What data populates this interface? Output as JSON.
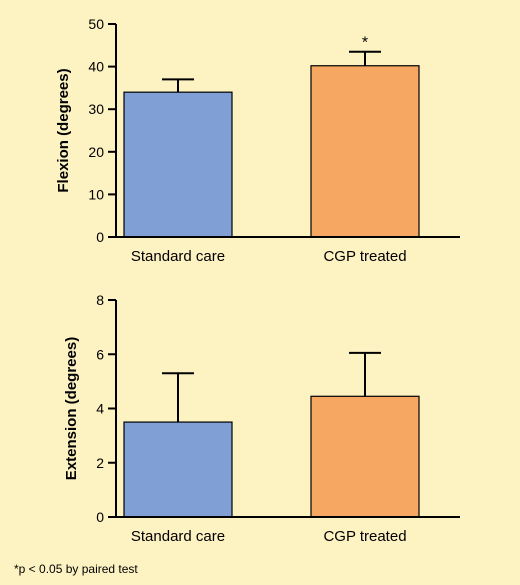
{
  "colors": {
    "background": "#fdf2c2",
    "standard_care": "#7f9fd5",
    "cgp_treated": "#f6a862"
  },
  "chart_data": [
    {
      "type": "bar",
      "categories": [
        "Standard care",
        "CGP treated"
      ],
      "values": [
        34,
        40.2
      ],
      "error_upper": [
        37,
        43.5
      ],
      "annotations": [
        "",
        "*"
      ],
      "ylabel": "Flexion (degrees)",
      "ylim": [
        0,
        50
      ],
      "yticks": [
        "0",
        "10",
        "20",
        "30",
        "40",
        "50"
      ],
      "grid": false
    },
    {
      "type": "bar",
      "categories": [
        "Standard care",
        "CGP treated"
      ],
      "values": [
        3.5,
        4.45
      ],
      "error_upper": [
        5.3,
        6.05
      ],
      "annotations": [
        "",
        ""
      ],
      "ylabel": "Extension (degrees)",
      "ylim": [
        0,
        8
      ],
      "yticks": [
        "0",
        "2",
        "4",
        "6",
        "8"
      ],
      "grid": false
    }
  ],
  "footnote": "*p < 0.05 by paired test"
}
